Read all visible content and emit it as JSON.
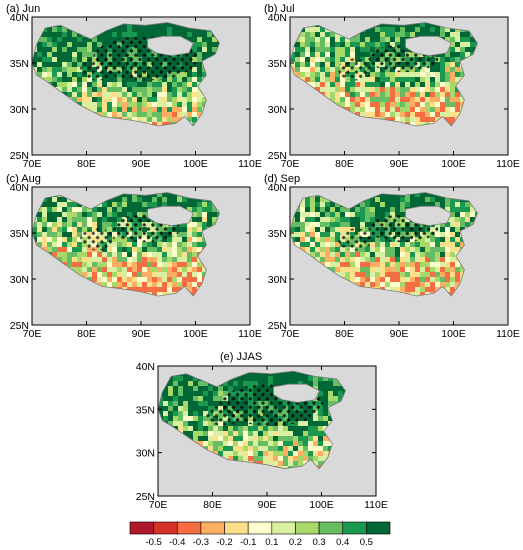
{
  "panels": [
    {
      "id": "a",
      "label": "(a) Jun"
    },
    {
      "id": "b",
      "label": "(b) Jul"
    },
    {
      "id": "c",
      "label": "(c) Aug"
    },
    {
      "id": "d",
      "label": "(d) Sep"
    },
    {
      "id": "e",
      "label": "(e) JJAS"
    }
  ],
  "axes": {
    "x_ticks": [
      "70E",
      "80E",
      "90E",
      "100E",
      "110E"
    ],
    "y_ticks": [
      "40N",
      "35N",
      "30N",
      "25N"
    ]
  },
  "colorbar": {
    "labels": [
      "-0.5",
      "-0.4",
      "-0.3",
      "-0.2",
      "-0.1",
      "0.1",
      "0.2",
      "0.3",
      "0.4",
      "0.5"
    ],
    "colors": [
      "#b2182b",
      "#d73027",
      "#f46d43",
      "#fdae61",
      "#fee08b",
      "#ffffcc",
      "#d9f0a3",
      "#a6d96a",
      "#66bd63",
      "#1a9850",
      "#006837"
    ]
  },
  "colors": {
    "ocean_gray": "#d9d9d9",
    "lake_outline": "#7f7f7f"
  }
}
